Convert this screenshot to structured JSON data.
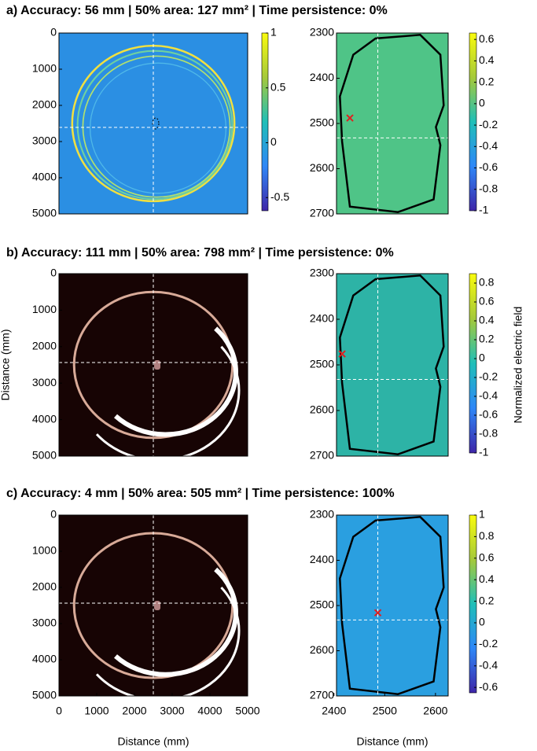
{
  "chart_data": [
    {
      "type": "heatmap",
      "title": "a) Accuracy: 56 mm | 50% area: 127 mm² | Time persistence: 0%",
      "color": "#2b8fe3",
      "ylim": [
        0,
        5000
      ],
      "yticks": [
        0,
        1000,
        2000,
        3000,
        4000,
        5000
      ],
      "y_reversed": true,
      "clim": [
        -0.62,
        1.0
      ],
      "cticks": [
        -0.5,
        0,
        0.5,
        1
      ]
    },
    {
      "type": "heatmap",
      "color": "#4fc487",
      "ylim": [
        2300,
        2700
      ],
      "yticks": [
        2300,
        2400,
        2500,
        2600,
        2700
      ],
      "y_reversed": true,
      "clim": [
        -1,
        0.66
      ],
      "cticks": [
        0.6,
        0.4,
        0.2,
        0,
        -0.2,
        -0.4,
        -0.6,
        -0.8,
        -1
      ]
    },
    {
      "type": "heatmap",
      "title": "b) Accuracy: 111 mm | 50% area: 798 mm² | Time persistence: 0%",
      "color": "#170404",
      "ylabel": "Distance (mm)",
      "ylim": [
        0,
        5000
      ],
      "yticks": [
        0,
        1000,
        2000,
        3000,
        4000,
        5000
      ],
      "y_reversed": true
    },
    {
      "type": "heatmap",
      "color": "#2db3a6",
      "ylim": [
        2300,
        2700
      ],
      "yticks": [
        2300,
        2400,
        2500,
        2600,
        2700
      ],
      "y_reversed": true,
      "clim": [
        -1,
        0.9
      ],
      "cticks": [
        0.8,
        0.6,
        0.4,
        0.2,
        0,
        -0.2,
        -0.4,
        -0.6,
        -0.8,
        -1
      ],
      "clabel": "Normalized electric field"
    },
    {
      "type": "heatmap",
      "title": "c) Accuracy: 4 mm | 50% area: 505 mm² | Time persistence: 100%",
      "color": "#170404",
      "xlabel": "Distance (mm)",
      "xlim": [
        0,
        5000
      ],
      "xticks": [
        0,
        1000,
        2000,
        3000,
        4000,
        5000
      ],
      "ylim": [
        0,
        5000
      ],
      "yticks": [
        0,
        1000,
        2000,
        3000,
        4000,
        5000
      ],
      "y_reversed": true
    },
    {
      "type": "heatmap",
      "color": "#2a9fe0",
      "xlabel": "Distance (mm)",
      "xlim": [
        2405,
        2625
      ],
      "xticks": [
        2400,
        2500,
        2600
      ],
      "ylim": [
        2300,
        2700
      ],
      "yticks": [
        2300,
        2400,
        2500,
        2600,
        2700
      ],
      "y_reversed": true,
      "clim": [
        -0.65,
        1
      ],
      "cticks": [
        1,
        0.8,
        0.6,
        0.4,
        0.2,
        0,
        -0.2,
        -0.4,
        -0.6
      ]
    }
  ]
}
